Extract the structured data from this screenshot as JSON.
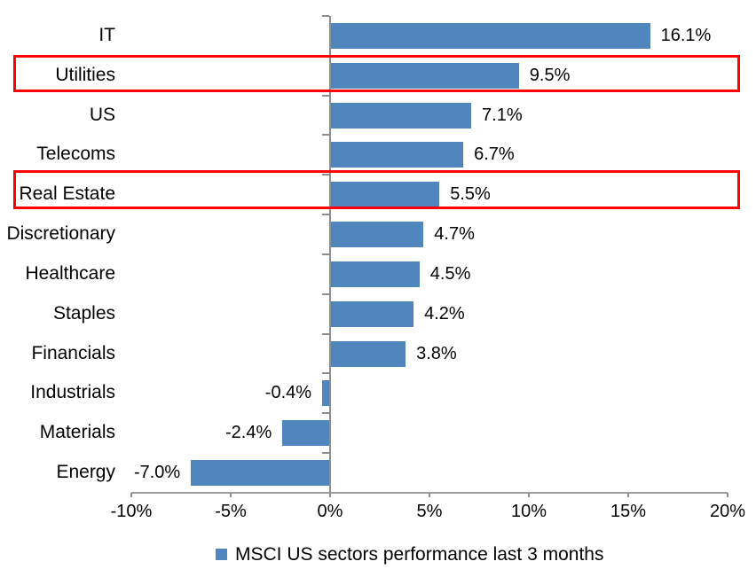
{
  "chart_data": {
    "type": "bar",
    "orientation": "horizontal",
    "title": "",
    "categories": [
      "IT",
      "Utilities",
      "US",
      "Telecoms",
      "Real Estate",
      "Discretionary",
      "Healthcare",
      "Staples",
      "Financials",
      "Industrials",
      "Materials",
      "Energy"
    ],
    "values": [
      16.1,
      9.5,
      7.1,
      6.7,
      5.5,
      4.7,
      4.5,
      4.2,
      3.8,
      -0.4,
      -2.4,
      -7.0
    ],
    "value_labels": [
      "16.1%",
      "9.5%",
      "7.1%",
      "6.7%",
      "5.5%",
      "4.7%",
      "4.5%",
      "4.2%",
      "3.8%",
      "-0.4%",
      "-2.4%",
      "-7.0%"
    ],
    "highlighted_categories": [
      "Utilities",
      "Real Estate"
    ],
    "x_ticks": [
      {
        "value": -10,
        "label": "-10%"
      },
      {
        "value": -5,
        "label": "-5%"
      },
      {
        "value": 0,
        "label": "0%"
      },
      {
        "value": 5,
        "label": "5%"
      },
      {
        "value": 10,
        "label": "10%"
      },
      {
        "value": 15,
        "label": "15%"
      },
      {
        "value": 20,
        "label": "20%"
      }
    ],
    "xlim": [
      -10,
      20
    ],
    "grid": false,
    "legend": {
      "position": "bottom",
      "label": "MSCI US sectors performance last 3 months"
    },
    "colors": {
      "bar": "#4f86bd",
      "highlight_box": "#fe0000",
      "axis": "#8e8e8e",
      "text": "#000000"
    }
  }
}
